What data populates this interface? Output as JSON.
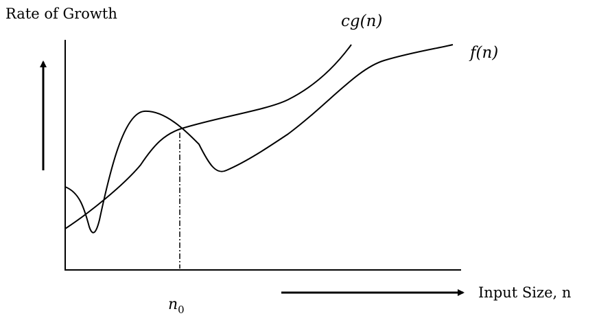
{
  "diagram": {
    "y_axis_label": "Rate of Growth",
    "x_axis_label": "Input Size, n",
    "curves": [
      {
        "label": "cg(n)"
      },
      {
        "label": "f(n)"
      }
    ],
    "threshold": {
      "label": "n",
      "subscript": "0"
    }
  }
}
